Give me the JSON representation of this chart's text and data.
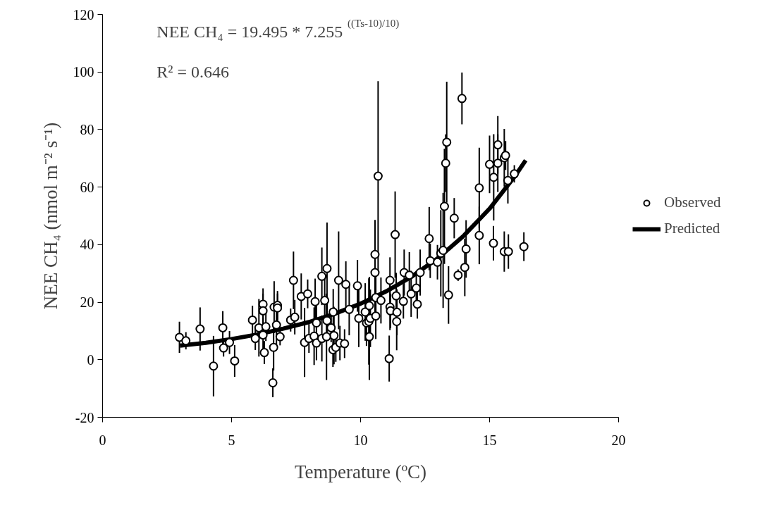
{
  "chart_data": {
    "type": "scatter",
    "xlabel": "Temperature (ºC)",
    "ylabel": "NEE CH₄ (nmol m⁻² s⁻¹)",
    "annotations": [
      "NEE CH₄ = 19.495 * 7.255$^{((Ts-10)/10)}$",
      "R² = 0.646"
    ],
    "xlim": [
      0,
      20
    ],
    "ylim": [
      -20,
      120
    ],
    "xticks": [
      0,
      5,
      10,
      15,
      20
    ],
    "yticks": [
      -20,
      0,
      20,
      40,
      60,
      80,
      100,
      120
    ],
    "grid": false,
    "legend": "right",
    "series": [
      {
        "name": "Observed",
        "marker": "circle",
        "color": "#000000",
        "x": [
          2.98,
          3.23,
          3.78,
          4.3,
          4.66,
          4.69,
          4.92,
          5.12,
          5.81,
          5.92,
          6.06,
          6.22,
          6.22,
          6.22,
          6.33,
          6.27,
          6.6,
          6.65,
          6.78,
          6.78,
          6.74,
          6.63,
          6.88,
          7.4,
          7.29,
          7.45,
          7.7,
          7.95,
          7.83,
          8.0,
          8.2,
          8.24,
          8.29,
          8.29,
          8.5,
          8.61,
          8.7,
          8.7,
          8.86,
          8.97,
          8.5,
          8.68,
          8.93,
          9.04,
          9.2,
          9.38,
          9.15,
          9.43,
          9.56,
          8.94,
          9.88,
          9.93,
          10.18,
          10.23,
          10.32,
          10.34,
          10.34,
          10.38,
          10.56,
          10.56,
          10.59,
          10.59,
          10.68,
          10.79,
          11.11,
          11.14,
          11.14,
          11.16,
          11.34,
          11.38,
          11.4,
          11.41,
          11.66,
          11.69,
          11.89,
          11.96,
          12.16,
          12.2,
          12.31,
          12.66,
          12.7,
          12.98,
          13.11,
          13.2,
          13.25,
          13.3,
          13.34,
          13.41,
          13.63,
          13.78,
          13.93,
          14.04,
          14.09,
          14.6,
          14.6,
          15.0,
          15.15,
          15.16,
          15.32,
          15.32,
          15.57,
          15.57,
          15.62,
          15.71,
          15.73,
          15.96,
          16.33
        ],
        "values": [
          7.8,
          6.6,
          10.7,
          -2.2,
          11.1,
          4.1,
          6.0,
          -0.4,
          13.8,
          7.4,
          11.1,
          19.3,
          17.0,
          8.6,
          11.5,
          2.5,
          -8,
          18.3,
          18.9,
          18.0,
          12.1,
          4.3,
          8.0,
          27.6,
          13.8,
          14.8,
          22.0,
          22.9,
          6.0,
          7.4,
          8.2,
          20.2,
          12.8,
          5.8,
          29.0,
          20.6,
          31.7,
          13.6,
          11.1,
          8.4,
          7.4,
          8.0,
          3.5,
          4.3,
          5.8,
          5.6,
          27.6,
          26.2,
          17.5,
          16.6,
          25.7,
          14.4,
          16.6,
          12.8,
          13.3,
          18.8,
          8.0,
          14.4,
          36.6,
          30.3,
          21.6,
          15.2,
          63.8,
          20.6,
          0.4,
          27.6,
          18.3,
          17.0,
          43.5,
          22.2,
          13.3,
          16.5,
          20.3,
          30.3,
          29.4,
          22.9,
          24.9,
          19.3,
          30.3,
          42.1,
          34.4,
          33.9,
          37.0,
          38.0,
          53.3,
          68.3,
          75.6,
          22.5,
          49.2,
          29.4,
          90.8,
          32.1,
          38.5,
          59.7,
          43.2,
          67.9,
          40.5,
          63.4,
          74.7,
          68.3,
          70.2,
          37.6,
          71.0,
          62.3,
          37.6,
          64.6,
          39.3
        ],
        "errors": [
          5.4,
          3,
          7.5,
          10.5,
          5.8,
          3,
          4,
          5.5,
          5,
          4,
          10,
          5.5,
          6,
          6,
          5,
          4,
          5,
          9,
          5,
          5,
          8,
          8,
          3,
          10,
          4,
          6,
          8,
          5,
          12,
          5,
          10,
          8,
          6,
          6,
          10,
          8,
          16,
          6,
          5,
          10,
          8,
          15,
          6,
          5,
          6,
          5,
          17,
          8,
          9,
          8,
          9,
          10,
          10,
          8,
          15,
          10,
          15,
          10,
          12,
          15,
          8,
          8,
          33,
          8,
          8,
          8,
          8,
          6,
          15,
          8,
          10,
          8,
          6,
          8,
          8,
          8,
          6,
          5,
          8,
          11,
          6,
          6,
          15,
          20,
          20,
          10,
          21,
          10,
          7,
          2,
          9,
          10,
          10,
          14,
          10,
          10,
          6,
          15,
          10,
          10,
          10,
          7,
          5,
          8,
          6,
          3,
          5
        ]
      },
      {
        "name": "Predicted",
        "type": "line",
        "marker": "none",
        "color": "#000000",
        "x": [
          3,
          4,
          5,
          6,
          7,
          8,
          9,
          10,
          11,
          12,
          13,
          14,
          15,
          16,
          16.4
        ],
        "values": [
          4.9,
          5.9,
          7.2,
          8.8,
          10.8,
          13.1,
          16.0,
          19.5,
          23.8,
          29.0,
          35.3,
          43.1,
          52.5,
          64.0,
          69.3
        ]
      }
    ]
  }
}
